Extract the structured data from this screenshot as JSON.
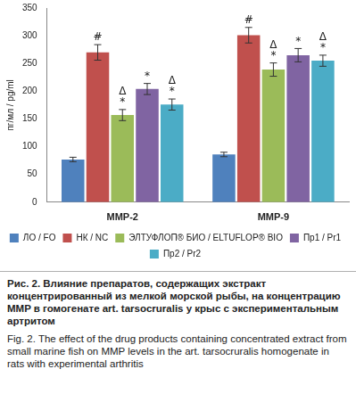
{
  "chart_data": {
    "type": "bar",
    "caption": [
      "Рис. 2. Влияние препаратов, содержащих экстракт концентрированный из мелкой морской рыбы, на концентрацию MMP в гомогенате art. tarsocruralis у крыс с экспериментальным артритом",
      "Fig. 2. The effect of the drug products containing concentrated extract from small marine fish on MMP levels in the art. tarsocruralis homogenate in rats with experimental arthritis"
    ],
    "y_label": "пг/мл / pg/ml",
    "categories": [
      "MMP-2",
      "MMP-9"
    ],
    "series": [
      {
        "name": "ЛО / FO",
        "color": "#4f81bd",
        "values": [
          77,
          86
        ],
        "errors": [
          4,
          4
        ],
        "annotations": [
          [],
          []
        ]
      },
      {
        "name": "НК / NC",
        "color": "#c0504d",
        "values": [
          270,
          301
        ],
        "errors": [
          14,
          14
        ],
        "annotations": [
          [
            "#"
          ],
          [
            "#"
          ]
        ]
      },
      {
        "name": "ЭЛТУФЛОП® БИО / ELTUFLOP® BIO",
        "color": "#9bbb59",
        "values": [
          157,
          239
        ],
        "errors": [
          10,
          12
        ],
        "annotations": [
          [
            "*",
            "Δ"
          ],
          [
            "*",
            "Δ"
          ]
        ]
      },
      {
        "name": "Пр1 / Pr1",
        "color": "#8064a2",
        "values": [
          204,
          265
        ],
        "errors": [
          10,
          12
        ],
        "annotations": [
          [
            "*"
          ],
          [
            "*"
          ]
        ]
      },
      {
        "name": "Пр2 / Pr2",
        "color": "#4bacc6",
        "values": [
          176,
          255
        ],
        "errors": [
          10,
          10
        ],
        "annotations": [
          [
            "*",
            "Δ"
          ],
          [
            "*",
            "Δ"
          ]
        ]
      }
    ],
    "ylim": [
      0,
      350
    ],
    "yticks": [
      0,
      50,
      100,
      150,
      200,
      250,
      300,
      350
    ],
    "grid": false,
    "legend": "bottom"
  }
}
